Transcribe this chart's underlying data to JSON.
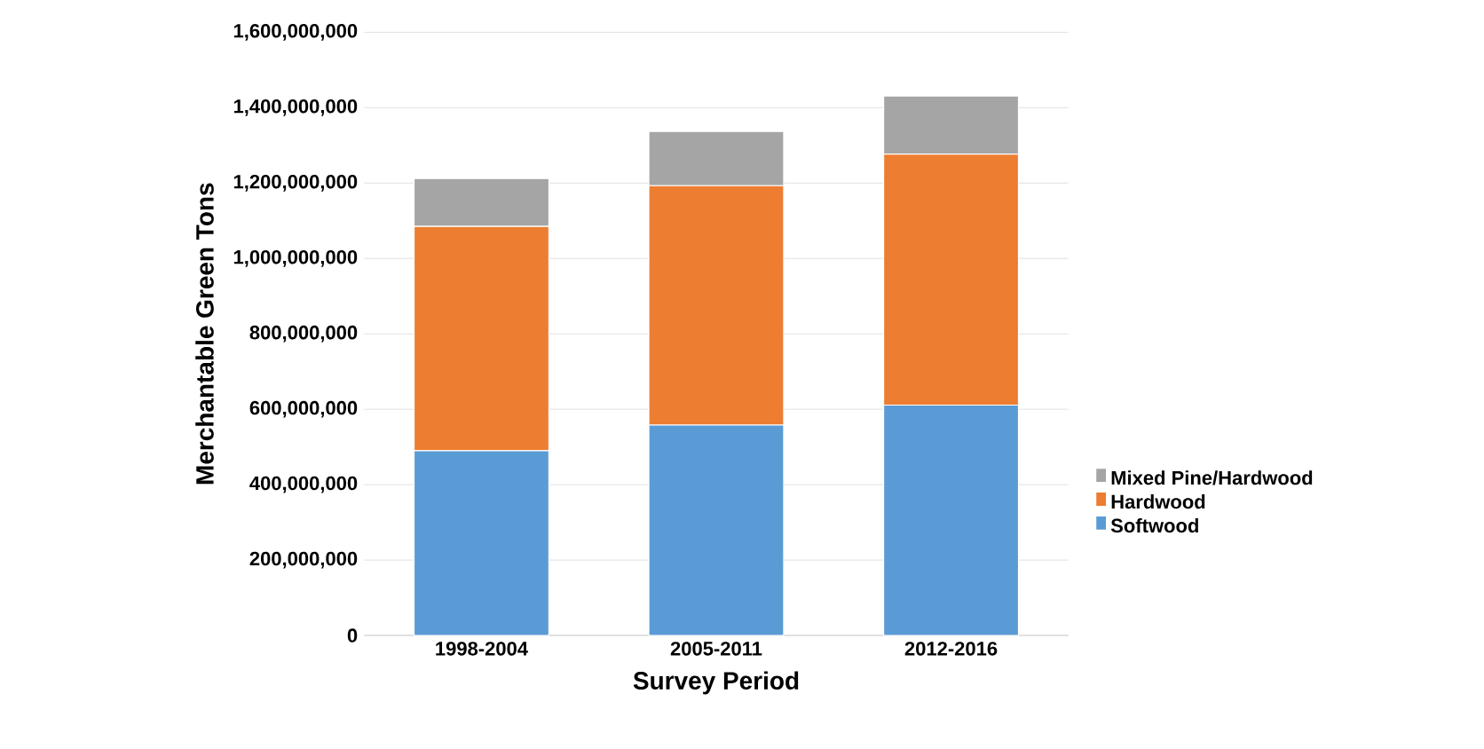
{
  "chart_data": {
    "type": "bar",
    "stacked": true,
    "xlabel": "Survey Period",
    "ylabel": "Merchantable Green Tons",
    "categories": [
      "1998-2004",
      "2005-2011",
      "2012-2016"
    ],
    "series": [
      {
        "name": "Softwood",
        "color": "#5b9bd5",
        "values": [
          490000000,
          558000000,
          611000000
        ]
      },
      {
        "name": "Hardwood",
        "color": "#ed7d31",
        "values": [
          595000000,
          635000000,
          666000000
        ]
      },
      {
        "name": "Mixed Pine/Hardwood",
        "color": "#a5a5a5",
        "values": [
          127000000,
          144000000,
          154000000
        ]
      }
    ],
    "ylim": [
      0,
      1600000000
    ],
    "yticks": [
      {
        "value": 0,
        "label": "0"
      },
      {
        "value": 200000000,
        "label": "200,000,000"
      },
      {
        "value": 400000000,
        "label": "400,000,000"
      },
      {
        "value": 600000000,
        "label": "600,000,000"
      },
      {
        "value": 800000000,
        "label": "800,000,000"
      },
      {
        "value": 1000000000,
        "label": "1,000,000,000"
      },
      {
        "value": 1200000000,
        "label": "1,200,000,000"
      },
      {
        "value": 1400000000,
        "label": "1,400,000,000"
      },
      {
        "value": 1600000000,
        "label": "1,600,000,000"
      }
    ],
    "grid": "y",
    "legend": "right"
  }
}
